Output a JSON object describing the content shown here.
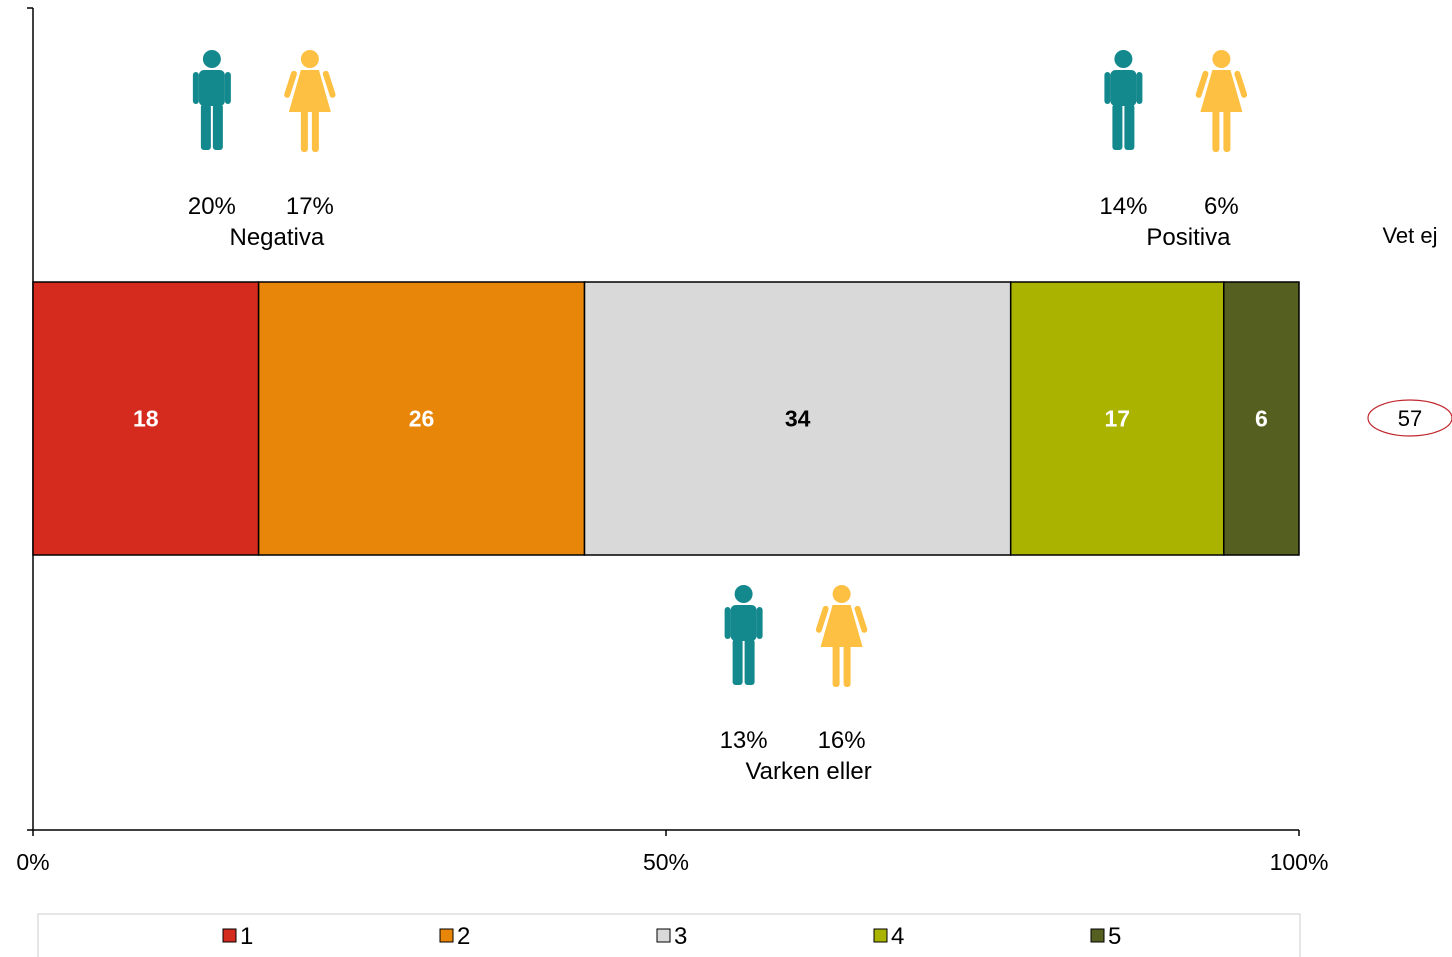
{
  "chart_data": {
    "type": "bar",
    "orientation": "horizontal",
    "stacked": true,
    "xlim": [
      0,
      100
    ],
    "ticks": [
      "0%",
      "50%",
      "100%"
    ],
    "series": [
      {
        "name": "1",
        "value": 18,
        "color": "#d52b1e",
        "label_color": "#ffffff"
      },
      {
        "name": "2",
        "value": 26,
        "color": "#e8860a",
        "label_color": "#ffffff"
      },
      {
        "name": "3",
        "value": 34,
        "color": "#d9d9d9",
        "label_color": "#000000"
      },
      {
        "name": "4",
        "value": 17,
        "color": "#aab300",
        "label_color": "#ffffff"
      },
      {
        "name": "5",
        "value": 6,
        "color": "#556020",
        "label_color": "#ffffff"
      }
    ],
    "annotations": [
      {
        "group": "Negativa",
        "men": "20%",
        "women": "17%",
        "at": 18
      },
      {
        "group": "Varken eller",
        "men": "13%",
        "women": "16%",
        "at": 60
      },
      {
        "group": "Positiva",
        "men": "14%",
        "women": "6%",
        "at": 90
      }
    ],
    "vet_ej": {
      "label": "Vet ej",
      "value": "57"
    },
    "legend_position": "bottom",
    "grid": false
  },
  "colors": {
    "men": "#13898e",
    "women": "#fec042",
    "circle": "#c0272d"
  },
  "icons": {
    "men": "man-icon",
    "women": "woman-icon"
  }
}
